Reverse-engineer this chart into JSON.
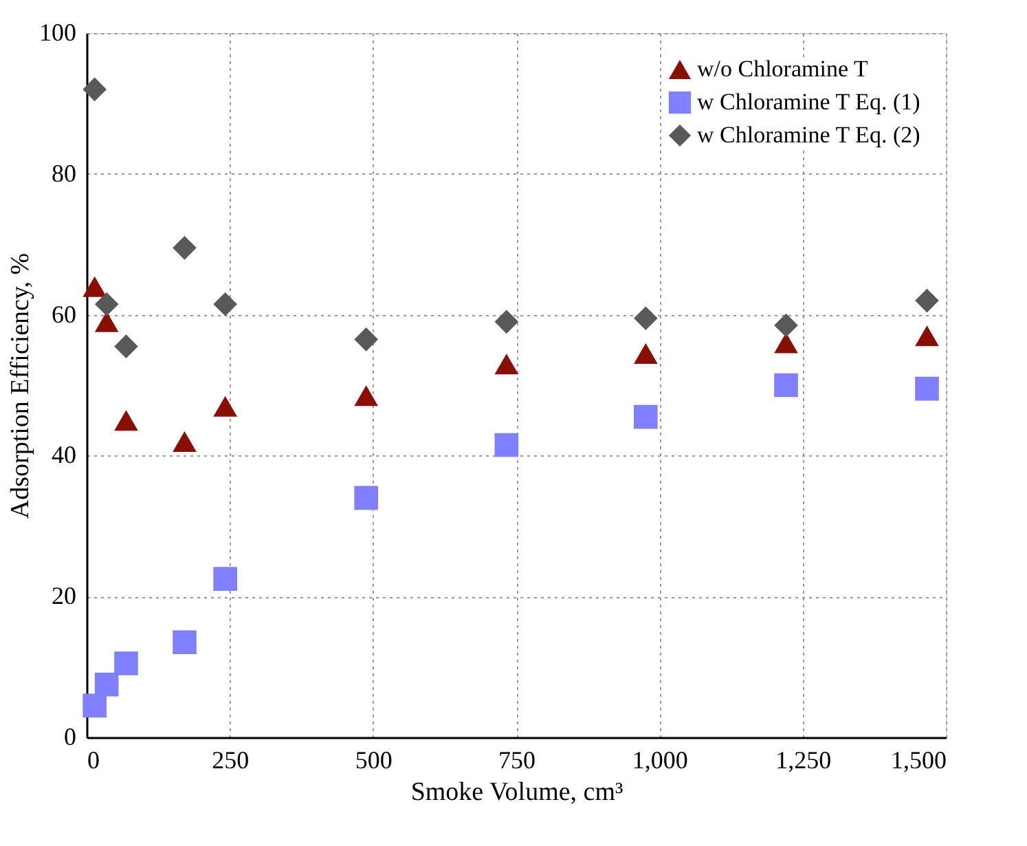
{
  "chart_data": {
    "type": "scatter",
    "xlabel": "Smoke Volume, cm³",
    "ylabel": "Adsorption Efficiency, %",
    "x": [
      14,
      35,
      69,
      171,
      242,
      488,
      733,
      976,
      1221,
      1467
    ],
    "series": [
      {
        "name": "w/o Chloramine T",
        "color": "#8b0e04",
        "marker": "triangle",
        "values": [
          64,
          59,
          45,
          42,
          47,
          48.5,
          53,
          54.5,
          56,
          57
        ]
      },
      {
        "name": "w Chloramine T Eq. (1)",
        "color": "#7f7fff",
        "marker": "square",
        "values": [
          4.5,
          7.5,
          10.5,
          13.5,
          22.5,
          34,
          41.5,
          45.5,
          50,
          49.5
        ]
      },
      {
        "name": "w Chloramine T Eq. (2)",
        "color": "#595959",
        "marker": "diamond",
        "values": [
          92,
          61.5,
          55.5,
          69.5,
          61.5,
          56.5,
          59,
          59.5,
          58.5,
          62
        ]
      }
    ],
    "xlim": [
      0,
      1500
    ],
    "xticks": [
      0,
      250,
      500,
      750,
      {
        "value": 1000,
        "label": "1,000"
      },
      {
        "value": 1250,
        "label": "1,250"
      },
      {
        "value": 1500,
        "label": "1,500"
      }
    ],
    "ylim": [
      0,
      100
    ],
    "yticks": [
      0,
      20,
      40,
      60,
      80,
      100
    ],
    "grid": true,
    "legend": "top right"
  }
}
